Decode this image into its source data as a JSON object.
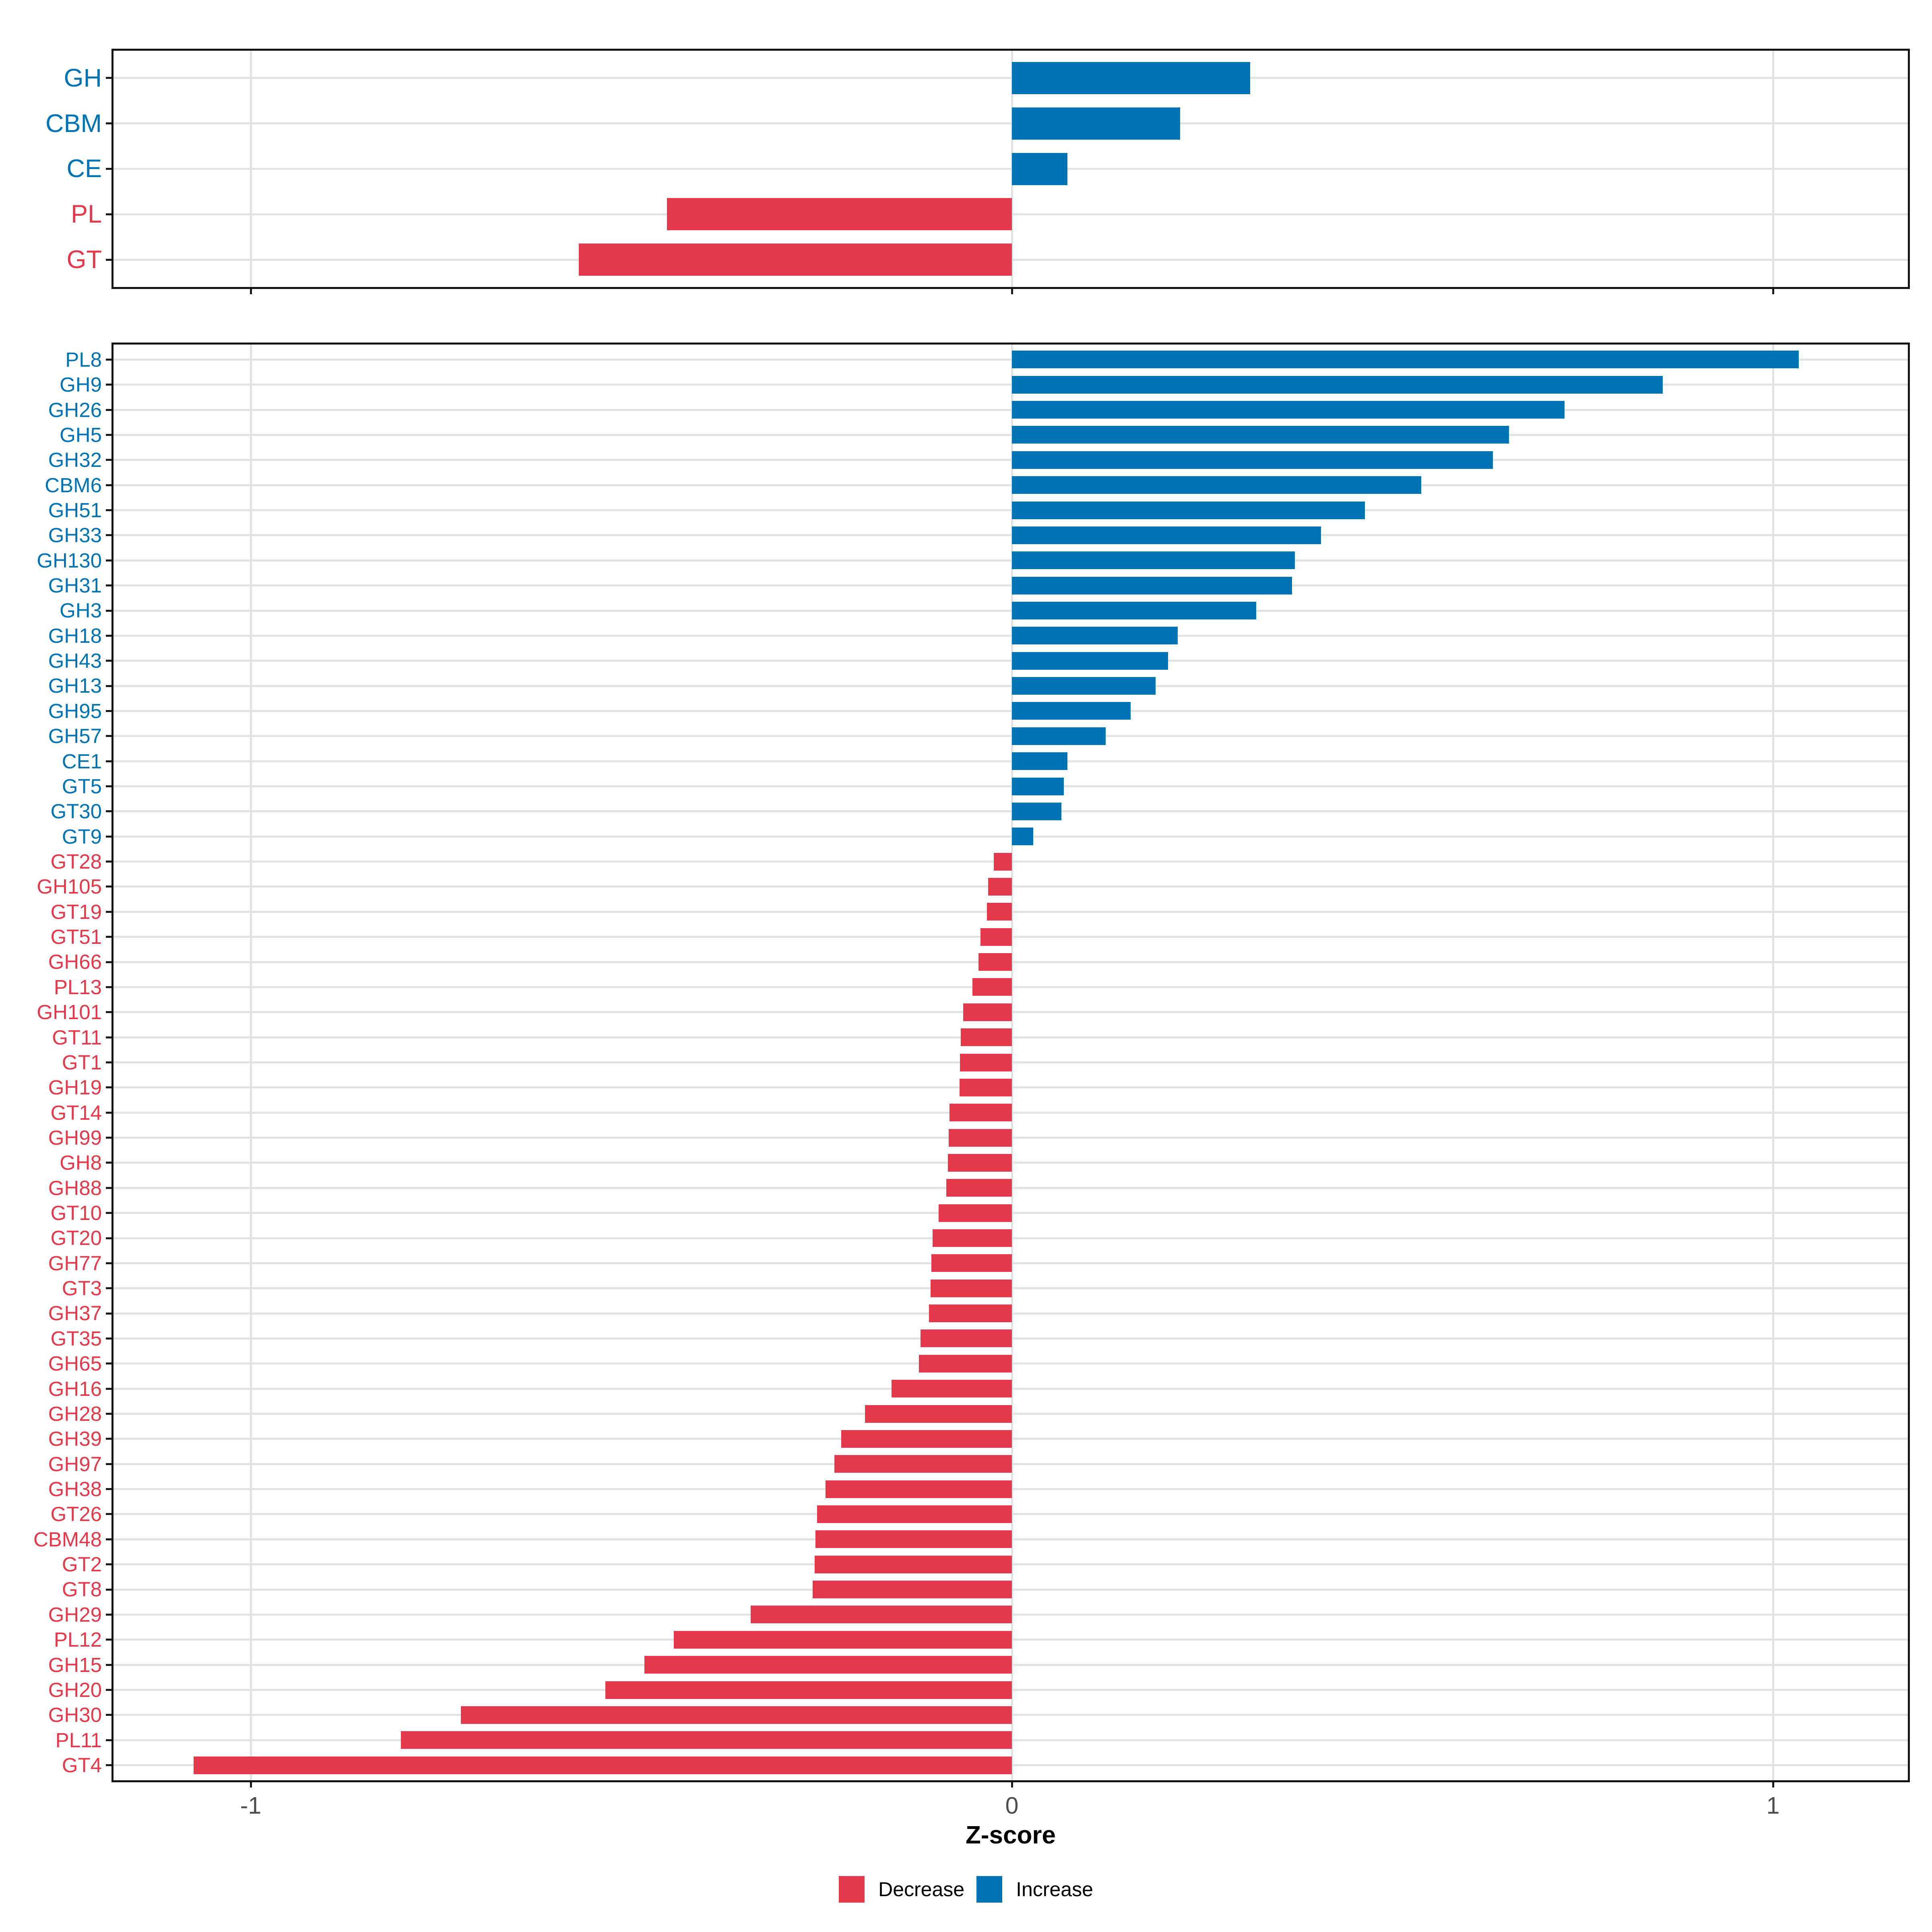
{
  "xlabel": "Z-score",
  "legend": {
    "decrease_label": "Decrease",
    "increase_label": "Increase"
  },
  "colors": {
    "increase": "#0073B4",
    "decrease": "#E4394B",
    "grid": "#E2E2E2",
    "axis_text": "#4D4D4D",
    "tick_mark": "#1A1A1A",
    "panel_border": "#141414"
  },
  "x_axis": {
    "ticks": [
      -1,
      0,
      1
    ],
    "tick_labels": [
      "-1",
      "0",
      "1"
    ],
    "range": [
      -1.184,
      1.179
    ]
  },
  "chart_data": [
    {
      "type": "bar",
      "orientation": "horizontal",
      "panel": "cazyme-class-summary",
      "xlabel": "Z-score",
      "xlim": [
        -1.184,
        1.179
      ],
      "grid": "major-only",
      "legend_position": "bottom",
      "categories": [
        "GH",
        "CBM",
        "CE",
        "PL",
        "GT"
      ],
      "values": [
        0.313,
        0.221,
        0.073,
        -0.453,
        -0.569
      ]
    },
    {
      "type": "bar",
      "orientation": "horizontal",
      "panel": "cazyme-family-detail",
      "xlabel": "Z-score",
      "xlim": [
        -1.184,
        1.179
      ],
      "grid": "major-only",
      "legend_position": "bottom",
      "categories": [
        "PL8",
        "GH9",
        "GH26",
        "GH5",
        "GH32",
        "CBM6",
        "GH51",
        "GH33",
        "GH130",
        "GH31",
        "GH3",
        "GH18",
        "GH43",
        "GH13",
        "GH95",
        "GH57",
        "CE1",
        "GT5",
        "GT30",
        "GT9",
        "GT28",
        "GH105",
        "GT19",
        "GT51",
        "GH66",
        "PL13",
        "GH101",
        "GT11",
        "GT1",
        "GH19",
        "GT14",
        "GH99",
        "GH8",
        "GH88",
        "GT10",
        "GT20",
        "GH77",
        "GT3",
        "GH37",
        "GT35",
        "GH65",
        "GH16",
        "GH28",
        "GH39",
        "GH97",
        "GH38",
        "GT26",
        "CBM48",
        "GT2",
        "GT8",
        "GH29",
        "PL12",
        "GH15",
        "GH20",
        "GH30",
        "PL11",
        "GT4"
      ],
      "values": [
        1.034,
        0.855,
        0.726,
        0.653,
        0.632,
        0.538,
        0.464,
        0.406,
        0.372,
        0.368,
        0.321,
        0.218,
        0.205,
        0.189,
        0.156,
        0.123,
        0.073,
        0.068,
        0.065,
        0.028,
        -0.024,
        -0.031,
        -0.033,
        -0.041,
        -0.044,
        -0.052,
        -0.064,
        -0.067,
        -0.068,
        -0.069,
        -0.082,
        -0.083,
        -0.084,
        -0.086,
        -0.096,
        -0.104,
        -0.106,
        -0.107,
        -0.109,
        -0.12,
        -0.122,
        -0.158,
        -0.193,
        -0.224,
        -0.233,
        -0.245,
        -0.256,
        -0.258,
        -0.259,
        -0.262,
        -0.343,
        -0.444,
        -0.483,
        -0.534,
        -0.724,
        -0.803,
        -1.075
      ]
    }
  ]
}
